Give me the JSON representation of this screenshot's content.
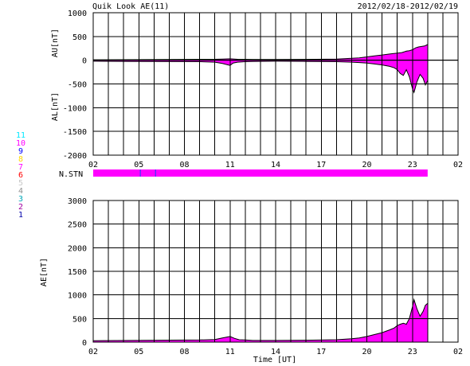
{
  "header": {
    "title": "Quik Look AE(11)",
    "date_range": "2012/02/18-2012/02/19"
  },
  "x_axis": {
    "ticks": [
      "02",
      "05",
      "08",
      "11",
      "14",
      "17",
      "20",
      "23",
      "02"
    ],
    "label": "Time [UT]"
  },
  "legend": {
    "items": [
      {
        "label": "11",
        "color": "#00e8ff"
      },
      {
        "label": "10",
        "color": "#ff00ff"
      },
      {
        "label": "9",
        "color": "#0000ff"
      },
      {
        "label": "8",
        "color": "#ffd800"
      },
      {
        "label": "7",
        "color": "#ff00ff"
      },
      {
        "label": "6",
        "color": "#ff0000"
      },
      {
        "label": "5",
        "color": "#c8c8c8"
      },
      {
        "label": "4",
        "color": "#909090"
      },
      {
        "label": "3",
        "color": "#00a8b8"
      },
      {
        "label": "2",
        "color": "#a000a0"
      },
      {
        "label": "1",
        "color": "#0000aa"
      }
    ]
  },
  "stn_panel": {
    "label": "N.STN",
    "bar_color": "#ff00ff",
    "marker_color": "#3a3aff",
    "bar_start_hour": 2.0,
    "bar_end_hour": 24.0,
    "markers_hour": [
      5.1,
      6.1
    ]
  },
  "colors": {
    "fill": "#ff00ff",
    "line": "#000000",
    "grid": "#000000"
  },
  "chart_data": [
    {
      "type": "area",
      "xlabel": "",
      "ylabel_upper": "AU[nT]",
      "ylabel_lower": "AL[nT]",
      "ylim": [
        -2000,
        1000
      ],
      "yticks": [
        1000,
        500,
        0,
        -500,
        -1000,
        -1500,
        -2000
      ],
      "xlim_hours": [
        2,
        26
      ],
      "series": [
        {
          "name": "AU",
          "x_hours": [
            2,
            4.5,
            9,
            10,
            10.5,
            11,
            11.5,
            12.5,
            14,
            16,
            18,
            19,
            19.5,
            20,
            20.5,
            21,
            21.5,
            22,
            22.3,
            22.6,
            22.8,
            23,
            23.2,
            23.4,
            23.6,
            23.8,
            24
          ],
          "values": [
            10,
            12,
            18,
            20,
            25,
            30,
            20,
            15,
            15,
            18,
            25,
            40,
            50,
            70,
            90,
            110,
            130,
            150,
            160,
            190,
            200,
            220,
            260,
            280,
            290,
            300,
            330
          ]
        },
        {
          "name": "AL",
          "x_hours": [
            2,
            4.5,
            9,
            10,
            10.5,
            11,
            11.2,
            11.5,
            12,
            12.5,
            14,
            16,
            18,
            19,
            19.5,
            20,
            20.5,
            21,
            21.5,
            21.8,
            22,
            22.2,
            22.4,
            22.6,
            22.8,
            23,
            23.1,
            23.3,
            23.5,
            23.7,
            23.85,
            24
          ],
          "values": [
            -20,
            -25,
            -30,
            -40,
            -70,
            -110,
            -60,
            -40,
            -30,
            -25,
            -20,
            -25,
            -30,
            -40,
            -50,
            -60,
            -80,
            -100,
            -130,
            -160,
            -200,
            -280,
            -320,
            -200,
            -350,
            -600,
            -680,
            -450,
            -300,
            -380,
            -520,
            -430
          ]
        }
      ]
    },
    {
      "type": "area",
      "xlabel": "Time [UT]",
      "ylabel": "AE[nT]",
      "ylim": [
        0,
        3000
      ],
      "yticks": [
        3000,
        2500,
        2000,
        1500,
        1000,
        500,
        0
      ],
      "xlim_hours": [
        2,
        26
      ],
      "series": [
        {
          "name": "AE",
          "x_hours": [
            2,
            4.5,
            9,
            10,
            10.5,
            11,
            11.3,
            11.6,
            12,
            12.5,
            14,
            16,
            18,
            19,
            19.5,
            20,
            20.5,
            21,
            21.5,
            21.8,
            22,
            22.2,
            22.4,
            22.6,
            22.8,
            23,
            23.1,
            23.3,
            23.5,
            23.7,
            23.85,
            24
          ],
          "values": [
            30,
            35,
            45,
            55,
            90,
            120,
            80,
            50,
            45,
            35,
            35,
            40,
            50,
            70,
            90,
            120,
            160,
            200,
            260,
            300,
            350,
            380,
            400,
            380,
            500,
            750,
            900,
            700,
            550,
            650,
            780,
            820
          ]
        }
      ]
    }
  ]
}
